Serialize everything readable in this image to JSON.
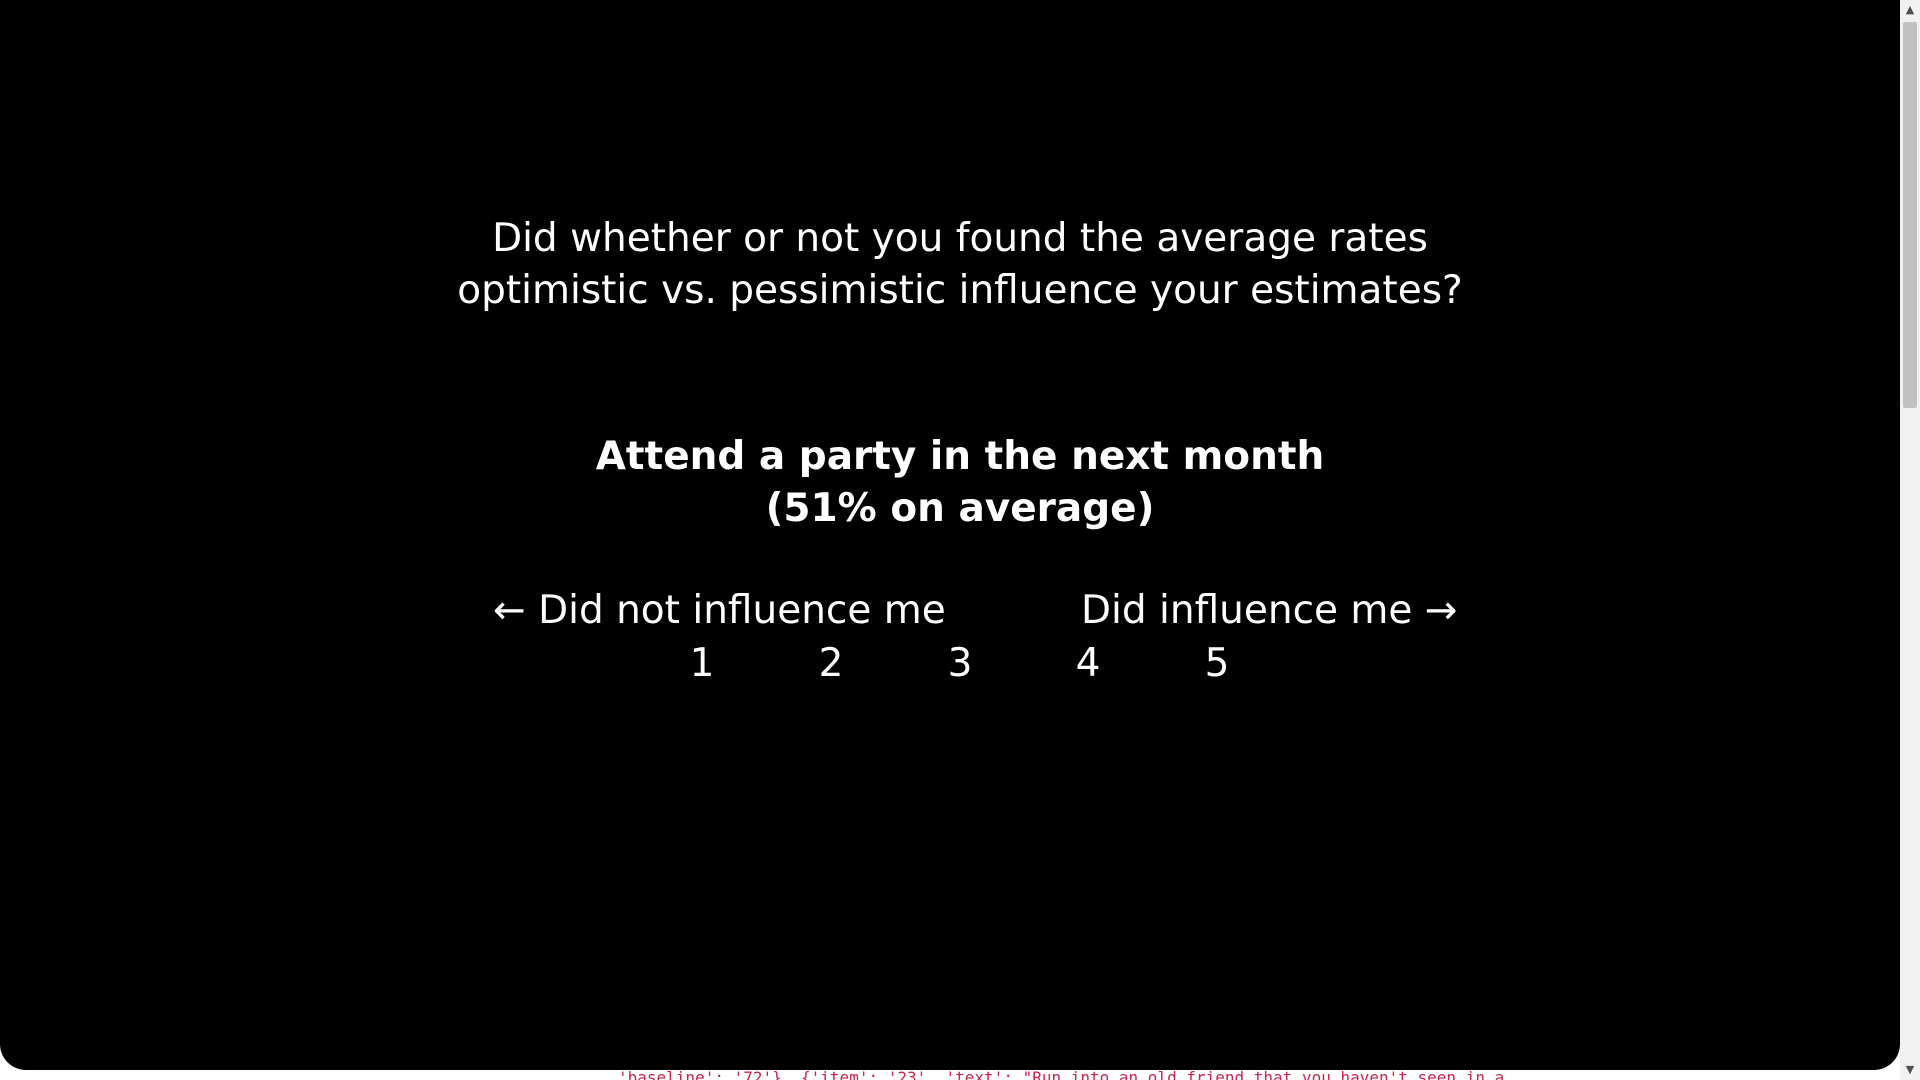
{
  "question": {
    "line1": "Did whether or not you found the average rates",
    "line2": "optimistic vs. pessimistic influence your estimates?"
  },
  "item": {
    "title": "Attend a party in the next month",
    "average": "(51% on average)"
  },
  "scale": {
    "left_anchor": "← Did not influence me",
    "right_anchor": "Did influence me →",
    "options": [
      "1",
      "2",
      "3",
      "4",
      "5"
    ]
  },
  "debug": {
    "text": "'baseline': '72'}, {'item': '23', 'text': \"Run into an old friend that you haven't seen in a"
  },
  "scrollbar": {
    "up_icon": "chevron-up-icon",
    "down_icon": "chevron-down-icon"
  },
  "colors": {
    "background": "#000000",
    "text": "#ffffff",
    "debug_text": "#c7254e"
  }
}
